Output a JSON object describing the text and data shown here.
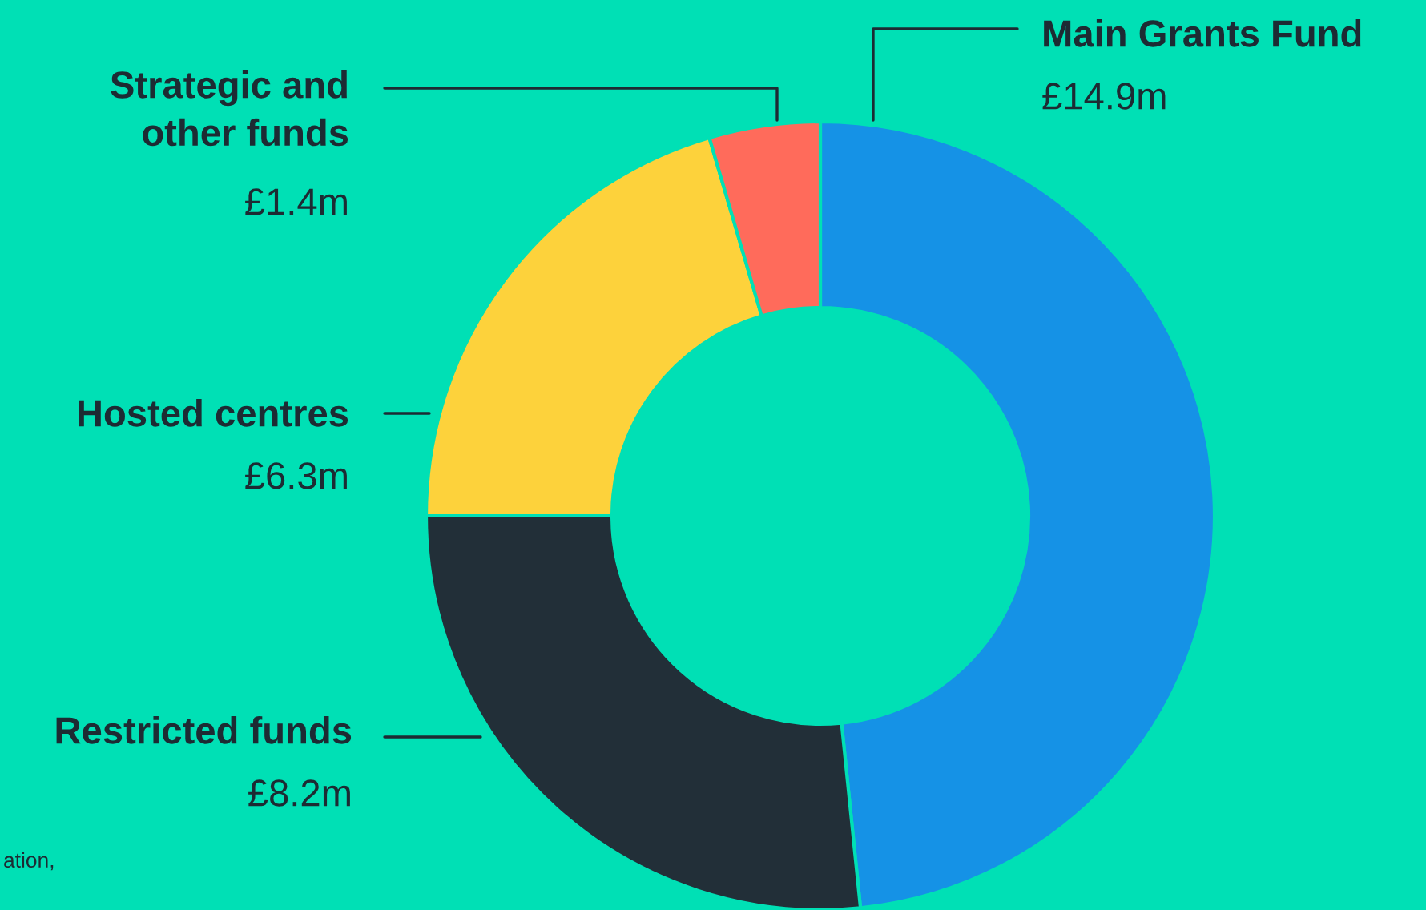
{
  "chart_data": {
    "type": "donut",
    "categories": [
      "Main Grants Fund",
      "Restricted funds",
      "Hosted centres",
      "Strategic and\nother funds"
    ],
    "values": [
      14.9,
      8.2,
      6.3,
      1.4
    ],
    "colors": [
      "#1592e6",
      "#222f38",
      "#fdd23b",
      "#ff6b5b"
    ],
    "value_labels": [
      "£14.9m",
      "£8.2m",
      "£6.3m",
      "£1.4m"
    ],
    "annotations": [
      "ation,"
    ]
  }
}
